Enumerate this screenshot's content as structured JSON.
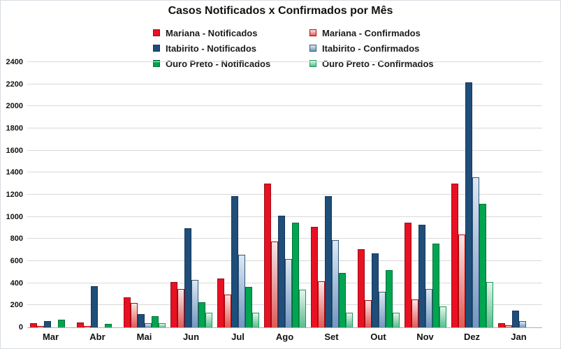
{
  "chart_data": {
    "type": "bar",
    "title": "Casos Notificados x Confirmados por Mês",
    "categories": [
      "Mar",
      "Abr",
      "Mai",
      "Jun",
      "Jul",
      "Ago",
      "Set",
      "Out",
      "Nov",
      "Dez",
      "Jan"
    ],
    "series": [
      {
        "name": "Mariana - Notificados",
        "values": [
          40,
          45,
          270,
          410,
          440,
          1300,
          910,
          710,
          950,
          1300,
          40
        ],
        "fill": {
          "type": "solid",
          "color": "#e81123",
          "border": "#9b0d16"
        }
      },
      {
        "name": "Mariana - Confirmados",
        "values": [
          10,
          15,
          220,
          350,
          300,
          780,
          420,
          245,
          250,
          840,
          20
        ],
        "fill": {
          "type": "gradient",
          "from": "#f7e7e7",
          "to": "#e05a57",
          "border": "#c00000"
        }
      },
      {
        "name": "Itabirito - Notificados",
        "values": [
          60,
          370,
          120,
          900,
          1190,
          1010,
          1190,
          670,
          930,
          2220,
          150
        ],
        "fill": {
          "type": "solid",
          "color": "#1f4e79",
          "border": "#16365c"
        }
      },
      {
        "name": "Itabirito - Confirmados",
        "values": [
          0,
          0,
          40,
          430,
          660,
          620,
          790,
          320,
          350,
          1360,
          55
        ],
        "fill": {
          "type": "gradient",
          "from": "#dde8f3",
          "to": "#7397c0",
          "border": "#31597f"
        }
      },
      {
        "name": "Ouro Preto - Notificados",
        "values": [
          70,
          30,
          100,
          230,
          365,
          950,
          495,
          515,
          760,
          1120,
          0
        ],
        "fill": {
          "type": "solid",
          "color": "#00a550",
          "border": "#027038"
        }
      },
      {
        "name": "Ouro Preto - Confirmados",
        "values": [
          0,
          0,
          40,
          130,
          135,
          340,
          135,
          135,
          190,
          410,
          0
        ],
        "fill": {
          "type": "gradient",
          "from": "#e6f4ec",
          "to": "#5abd8d",
          "border": "#169a5a"
        }
      }
    ],
    "y_axis": {
      "min": 0,
      "max": 2400,
      "step": 200,
      "tick_labels": [
        "0",
        "200",
        "400",
        "600",
        "800",
        "1000",
        "1200",
        "1400",
        "1600",
        "1800",
        "2000",
        "2200",
        "2400"
      ]
    },
    "xlabel": "",
    "ylabel": "",
    "grid": true,
    "legend_position": "top",
    "legend_columns": {
      "col1": [
        "Mariana - Notificados",
        "Itabirito - Notificados",
        "Ouro Preto - Notificados"
      ],
      "col2": [
        "Mariana - Confirmados",
        "Itabirito - Confirmados",
        "Ouro Preto - Confirmados"
      ]
    },
    "colors": {
      "grid": "#d9d9d9",
      "axis": "#b0b0b0",
      "text": "#111111"
    }
  }
}
